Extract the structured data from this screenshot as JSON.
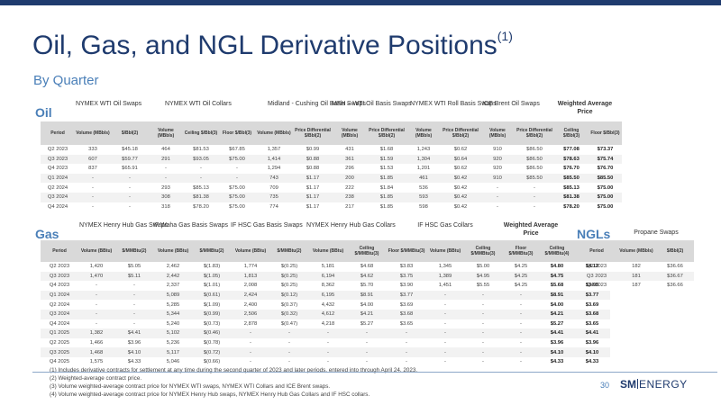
{
  "title": "Oil, Gas, and NGL Derivative Positions",
  "title_sup": "(1)",
  "subtitle": "By Quarter",
  "oil": {
    "label": "Oil",
    "groups": [
      "NYMEX WTI Oil Swaps",
      "NYMEX WTI Oil Collars",
      "Midland - Cushing Oil Basis Swaps",
      "MEH – WTI Oil Basis Swaps",
      "NYMEX WTI Roll Basis Swaps",
      "ICE Brent Oil Swaps",
      "Weighted Average Price"
    ],
    "headers": [
      "Period",
      "Volume (MBbls)",
      "$/Bbl(2)",
      "Volume (MBbls)",
      "Ceiling $/Bbl(3)",
      "Floor $/Bbl(3)",
      "Volume (MBbls)",
      "Price Differential $/Bbl(2)",
      "Volume (MBbls)",
      "Price Differential $/Bbl(2)",
      "Volume (MBbls)",
      "Price Differential $/Bbl(2)",
      "Volume (MBbls)",
      "Price Differential $/Bbl(2)",
      "Ceiling $/Bbl(3)",
      "Floor $/Bbl(3)"
    ],
    "rows": [
      [
        "Q2 2023",
        "333",
        "$45.18",
        "464",
        "$81.53",
        "$67.85",
        "1,357",
        "$0.99",
        "431",
        "$1.68",
        "1,243",
        "$0.62",
        "910",
        "$86.50",
        "$77.08",
        "$73.37"
      ],
      [
        "Q3 2023",
        "607",
        "$59.77",
        "291",
        "$93.05",
        "$75.00",
        "1,414",
        "$0.88",
        "361",
        "$1.59",
        "1,304",
        "$0.64",
        "920",
        "$86.50",
        "$78.63",
        "$75.74"
      ],
      [
        "Q4 2023",
        "837",
        "$65.91",
        "-",
        "-",
        "-",
        "1,294",
        "$0.88",
        "296",
        "$1.53",
        "1,201",
        "$0.62",
        "920",
        "$86.50",
        "$76.70",
        "$76.70"
      ],
      [
        "Q1 2024",
        "-",
        "-",
        "-",
        "-",
        "-",
        "743",
        "$1.17",
        "200",
        "$1.85",
        "461",
        "$0.42",
        "910",
        "$85.50",
        "$85.50",
        "$85.50"
      ],
      [
        "Q2 2024",
        "-",
        "-",
        "293",
        "$85.13",
        "$75.00",
        "709",
        "$1.17",
        "222",
        "$1.84",
        "536",
        "$0.42",
        "-",
        "-",
        "$85.13",
        "$75.00"
      ],
      [
        "Q3 2024",
        "-",
        "-",
        "308",
        "$81.38",
        "$75.00",
        "735",
        "$1.17",
        "238",
        "$1.85",
        "593",
        "$0.42",
        "-",
        "-",
        "$81.38",
        "$75.00"
      ],
      [
        "Q4 2024",
        "-",
        "-",
        "318",
        "$78.20",
        "$75.00",
        "774",
        "$1.17",
        "217",
        "$1.85",
        "598",
        "$0.42",
        "-",
        "-",
        "$78.20",
        "$75.00"
      ]
    ]
  },
  "gas": {
    "label": "Gas",
    "groups": [
      "NYMEX Henry Hub Gas Swaps",
      "IF Waha Gas Basis Swaps",
      "IF HSC Gas Basis Swaps",
      "NYMEX Henry Hub Gas Collars",
      "IF HSC Gas Collars",
      "Weighted Average Price"
    ],
    "headers": [
      "Period",
      "Volume (BBtu)",
      "$/MMBtu(2)",
      "Volume (BBtu)",
      "$/MMBtu(2)",
      "Volume (BBtu)",
      "$/MMBtu(2)",
      "Volume (BBtu)",
      "Ceiling $/MMBtu(3)",
      "Floor $/MMBtu(3)",
      "Volume (BBtu)",
      "Ceiling $/MMBtu(3)",
      "Floor $/MMBtu(3)",
      "Ceiling $/MMBtu(4)",
      "Floor $/MMBtu(4)"
    ],
    "rows": [
      [
        "Q2 2023",
        "1,420",
        "$5.05",
        "2,462",
        "$(1.83)",
        "1,774",
        "$(0.25)",
        "5,181",
        "$4.68",
        "$3.83",
        "1,345",
        "$5.00",
        "$4.25",
        "$4.80",
        "$4.12"
      ],
      [
        "Q3 2023",
        "1,470",
        "$5.11",
        "2,442",
        "$(1.05)",
        "1,813",
        "$(0.25)",
        "6,194",
        "$4.62",
        "$3.75",
        "1,389",
        "$4.95",
        "$4.25",
        "$4.75",
        "$4.05"
      ],
      [
        "Q4 2023",
        "-",
        "-",
        "2,337",
        "$(1.01)",
        "2,008",
        "$(0.25)",
        "8,362",
        "$5.70",
        "$3.90",
        "1,451",
        "$5.55",
        "$4.25",
        "$5.68",
        "$3.95"
      ],
      [
        "Q1 2024",
        "-",
        "-",
        "5,089",
        "$(0.61)",
        "2,424",
        "$(0.12)",
        "6,195",
        "$8.91",
        "$3.77",
        "-",
        "-",
        "-",
        "$8.91",
        "$3.77"
      ],
      [
        "Q2 2024",
        "-",
        "-",
        "5,285",
        "$(1.09)",
        "2,400",
        "$(0.37)",
        "4,432",
        "$4.00",
        "$3.69",
        "-",
        "-",
        "-",
        "$4.00",
        "$3.69"
      ],
      [
        "Q3 2024",
        "-",
        "-",
        "5,344",
        "$(0.99)",
        "2,506",
        "$(0.32)",
        "4,612",
        "$4.21",
        "$3.68",
        "-",
        "-",
        "-",
        "$4.21",
        "$3.68"
      ],
      [
        "Q4 2024",
        "-",
        "-",
        "5,240",
        "$(0.73)",
        "2,878",
        "$(0.47)",
        "4,218",
        "$5.27",
        "$3.65",
        "-",
        "-",
        "-",
        "$5.27",
        "$3.65"
      ],
      [
        "Q1 2025",
        "1,382",
        "$4.41",
        "5,102",
        "$(0.46)",
        "-",
        "-",
        "-",
        "-",
        "-",
        "-",
        "-",
        "-",
        "$4.41",
        "$4.41"
      ],
      [
        "Q2 2025",
        "1,466",
        "$3.96",
        "5,236",
        "$(0.78)",
        "-",
        "-",
        "-",
        "-",
        "-",
        "-",
        "-",
        "-",
        "$3.96",
        "$3.96"
      ],
      [
        "Q3 2025",
        "1,468",
        "$4.10",
        "5,117",
        "$(0.72)",
        "-",
        "-",
        "-",
        "-",
        "-",
        "-",
        "-",
        "-",
        "$4.10",
        "$4.10"
      ],
      [
        "Q4 2025",
        "1,575",
        "$4.33",
        "5,046",
        "$(0.66)",
        "-",
        "-",
        "-",
        "-",
        "-",
        "-",
        "-",
        "-",
        "$4.33",
        "$4.33"
      ]
    ]
  },
  "ngl": {
    "label": "NGLs",
    "groups": [
      "Propane Swaps"
    ],
    "headers": [
      "Period",
      "Volume (MBbls)",
      "$/Bbl(2)"
    ],
    "rows": [
      [
        "Q2 2023",
        "182",
        "$36.66"
      ],
      [
        "Q3 2023",
        "181",
        "$36.67"
      ],
      [
        "Q4 2023",
        "187",
        "$36.66"
      ]
    ]
  },
  "footnotes": [
    "(1)   Includes derivative contracts for settlement at any time during the second quarter of 2023 and later periods, entered into through April 24, 2023.",
    "(2)   Weighted-average contract price.",
    "(3)   Volume weighted-average contract price for NYMEX WTI swaps, NYMEX WTI Collars and ICE Brent swaps.",
    "(4)   Volume weighted-average contract price for NYMEX Henry Hub swaps, NYMEX Henry Hub Gas Collars and IF HSC collars."
  ],
  "page_number": "30",
  "logo": {
    "sm": "SM",
    "energy": "ENERGY"
  },
  "colors": {
    "brand": "#1f3b6e",
    "accent": "#4a7fb8",
    "header_gray": "#d9d9d9"
  }
}
